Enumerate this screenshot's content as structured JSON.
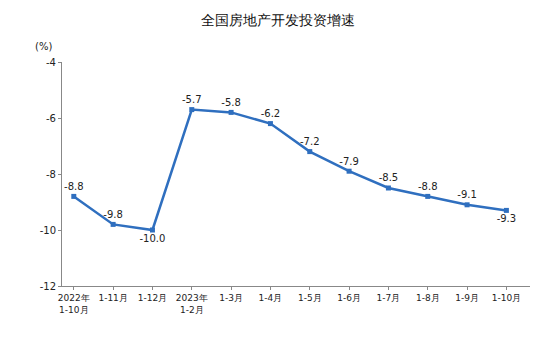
{
  "chart_data": {
    "type": "line",
    "title": "全国房地产开发投资增速",
    "ylabel": "(%)",
    "categories": [
      "2022年\n1-10月",
      "1-11月",
      "1-12月",
      "2023年\n1-2月",
      "1-3月",
      "1-4月",
      "1-5月",
      "1-6月",
      "1-7月",
      "1-8月",
      "1-9月",
      "1-10月"
    ],
    "values": [
      -8.8,
      -9.8,
      -10.0,
      -5.7,
      -5.8,
      -6.2,
      -7.2,
      -7.9,
      -8.5,
      -8.8,
      -9.1,
      -9.3
    ],
    "value_labels": [
      "-8.8",
      "-9.8",
      "-10.0",
      "-5.7",
      "-5.8",
      "-6.2",
      "-7.2",
      "-7.9",
      "-8.5",
      "-8.8",
      "-9.1",
      "-9.3"
    ],
    "color": "#2f6fbf",
    "marker": "square",
    "ylim": [
      -12,
      -4
    ],
    "yticks": [
      -12,
      -10,
      -8,
      -6,
      -4
    ],
    "grid": false,
    "data_labels": true
  }
}
